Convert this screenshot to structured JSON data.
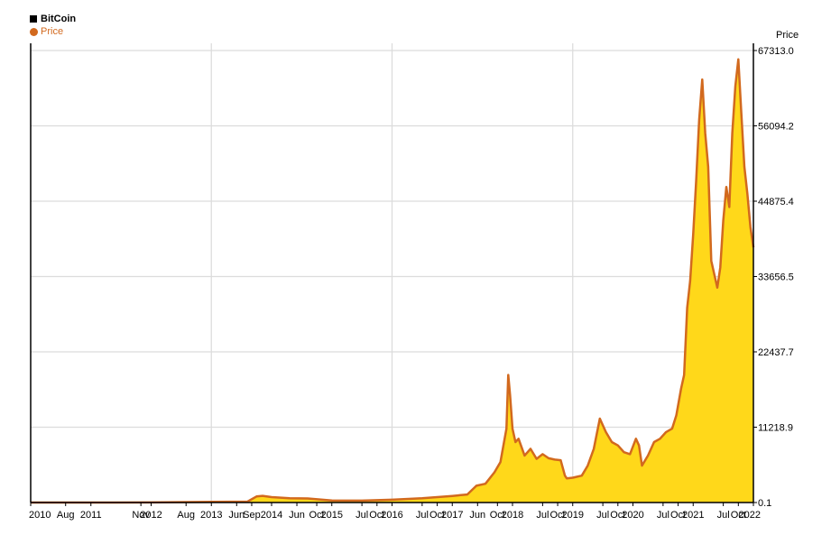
{
  "chart_data": {
    "type": "area",
    "title": "BitCoin",
    "ylabel": "Price",
    "legend": {
      "position": "top-left",
      "series_name": "Price"
    },
    "colors": {
      "line": "#d2691e",
      "fill": "#ffd81a",
      "legend_marker": "#d2691e"
    },
    "ylim": [
      0.1,
      67313.0
    ],
    "xlim": [
      2010.0,
      2022.0
    ],
    "grid": true,
    "y_ticks": [
      {
        "value": 0.1,
        "label": "0.1"
      },
      {
        "value": 11218.9,
        "label": "11218.9"
      },
      {
        "value": 22437.7,
        "label": "22437.7"
      },
      {
        "value": 33656.5,
        "label": "33656.5"
      },
      {
        "value": 44875.4,
        "label": "44875.4"
      },
      {
        "value": 56094.2,
        "label": "56094.2"
      },
      {
        "value": 67313.0,
        "label": "67313.0"
      }
    ],
    "x_ticks": [
      {
        "value": 2010.0,
        "label": "2010"
      },
      {
        "value": 2010.58,
        "label": "Aug"
      },
      {
        "value": 2011.0,
        "label": "2011"
      },
      {
        "value": 2011.83,
        "label": "Nov"
      },
      {
        "value": 2012.0,
        "label": "2012"
      },
      {
        "value": 2012.58,
        "label": "Aug"
      },
      {
        "value": 2013.0,
        "label": "2013"
      },
      {
        "value": 2013.42,
        "label": "Jun"
      },
      {
        "value": 2013.67,
        "label": "Sep"
      },
      {
        "value": 2014.0,
        "label": "2014"
      },
      {
        "value": 2014.42,
        "label": "Jun"
      },
      {
        "value": 2014.75,
        "label": "Oct"
      },
      {
        "value": 2015.0,
        "label": "2015"
      },
      {
        "value": 2015.5,
        "label": "Jul"
      },
      {
        "value": 2015.75,
        "label": "Oct"
      },
      {
        "value": 2016.0,
        "label": "2016"
      },
      {
        "value": 2016.5,
        "label": "Jul"
      },
      {
        "value": 2016.75,
        "label": "Oct"
      },
      {
        "value": 2017.0,
        "label": "2017"
      },
      {
        "value": 2017.42,
        "label": "Jun"
      },
      {
        "value": 2017.75,
        "label": "Oct"
      },
      {
        "value": 2018.0,
        "label": "2018"
      },
      {
        "value": 2018.5,
        "label": "Jul"
      },
      {
        "value": 2018.75,
        "label": "Oct"
      },
      {
        "value": 2019.0,
        "label": "2019"
      },
      {
        "value": 2019.5,
        "label": "Jul"
      },
      {
        "value": 2019.75,
        "label": "Oct"
      },
      {
        "value": 2020.0,
        "label": "2020"
      },
      {
        "value": 2020.5,
        "label": "Jul"
      },
      {
        "value": 2020.75,
        "label": "Oct"
      },
      {
        "value": 2021.0,
        "label": "2021"
      },
      {
        "value": 2021.5,
        "label": "Jul"
      },
      {
        "value": 2021.75,
        "label": "Oct"
      },
      {
        "value": 2022.0,
        "label": "2022"
      }
    ],
    "grid_x": [
      2013.0,
      2016.0,
      2019.0
    ],
    "series": [
      {
        "name": "Price",
        "x": [
          2010.0,
          2011.0,
          2012.0,
          2013.0,
          2013.4,
          2013.6,
          2013.75,
          2013.85,
          2014.0,
          2014.3,
          2014.6,
          2015.0,
          2015.5,
          2016.0,
          2016.5,
          2017.0,
          2017.25,
          2017.4,
          2017.55,
          2017.7,
          2017.8,
          2017.9,
          2017.93,
          2017.96,
          2018.0,
          2018.05,
          2018.1,
          2018.2,
          2018.3,
          2018.4,
          2018.5,
          2018.6,
          2018.7,
          2018.8,
          2018.87,
          2018.9,
          2019.0,
          2019.15,
          2019.25,
          2019.35,
          2019.45,
          2019.55,
          2019.65,
          2019.75,
          2019.85,
          2019.95,
          2020.05,
          2020.1,
          2020.15,
          2020.25,
          2020.35,
          2020.45,
          2020.55,
          2020.65,
          2020.72,
          2020.8,
          2020.85,
          2020.9,
          2020.95,
          2021.0,
          2021.05,
          2021.1,
          2021.15,
          2021.2,
          2021.25,
          2021.3,
          2021.35,
          2021.4,
          2021.45,
          2021.5,
          2021.55,
          2021.6,
          2021.65,
          2021.7,
          2021.75,
          2021.8,
          2021.85,
          2021.9,
          2021.95,
          2022.0
        ],
        "values": [
          0.1,
          5,
          12,
          100,
          120,
          130,
          900,
          1000,
          800,
          650,
          600,
          300,
          280,
          420,
          650,
          980,
          1200,
          2500,
          2800,
          4500,
          6000,
          11000,
          19000,
          16000,
          11000,
          9000,
          9500,
          7000,
          8000,
          6500,
          7200,
          6600,
          6400,
          6300,
          4000,
          3600,
          3700,
          4000,
          5500,
          8000,
          12500,
          10500,
          9000,
          8500,
          7500,
          7200,
          9500,
          8500,
          5500,
          7000,
          9000,
          9500,
          10500,
          11000,
          13000,
          17000,
          19000,
          29000,
          33000,
          40000,
          48000,
          57000,
          63000,
          55000,
          50000,
          36000,
          34000,
          32000,
          35000,
          42000,
          47000,
          44000,
          55000,
          62000,
          66000,
          58000,
          50000,
          46000,
          41000,
          38000
        ]
      }
    ]
  }
}
